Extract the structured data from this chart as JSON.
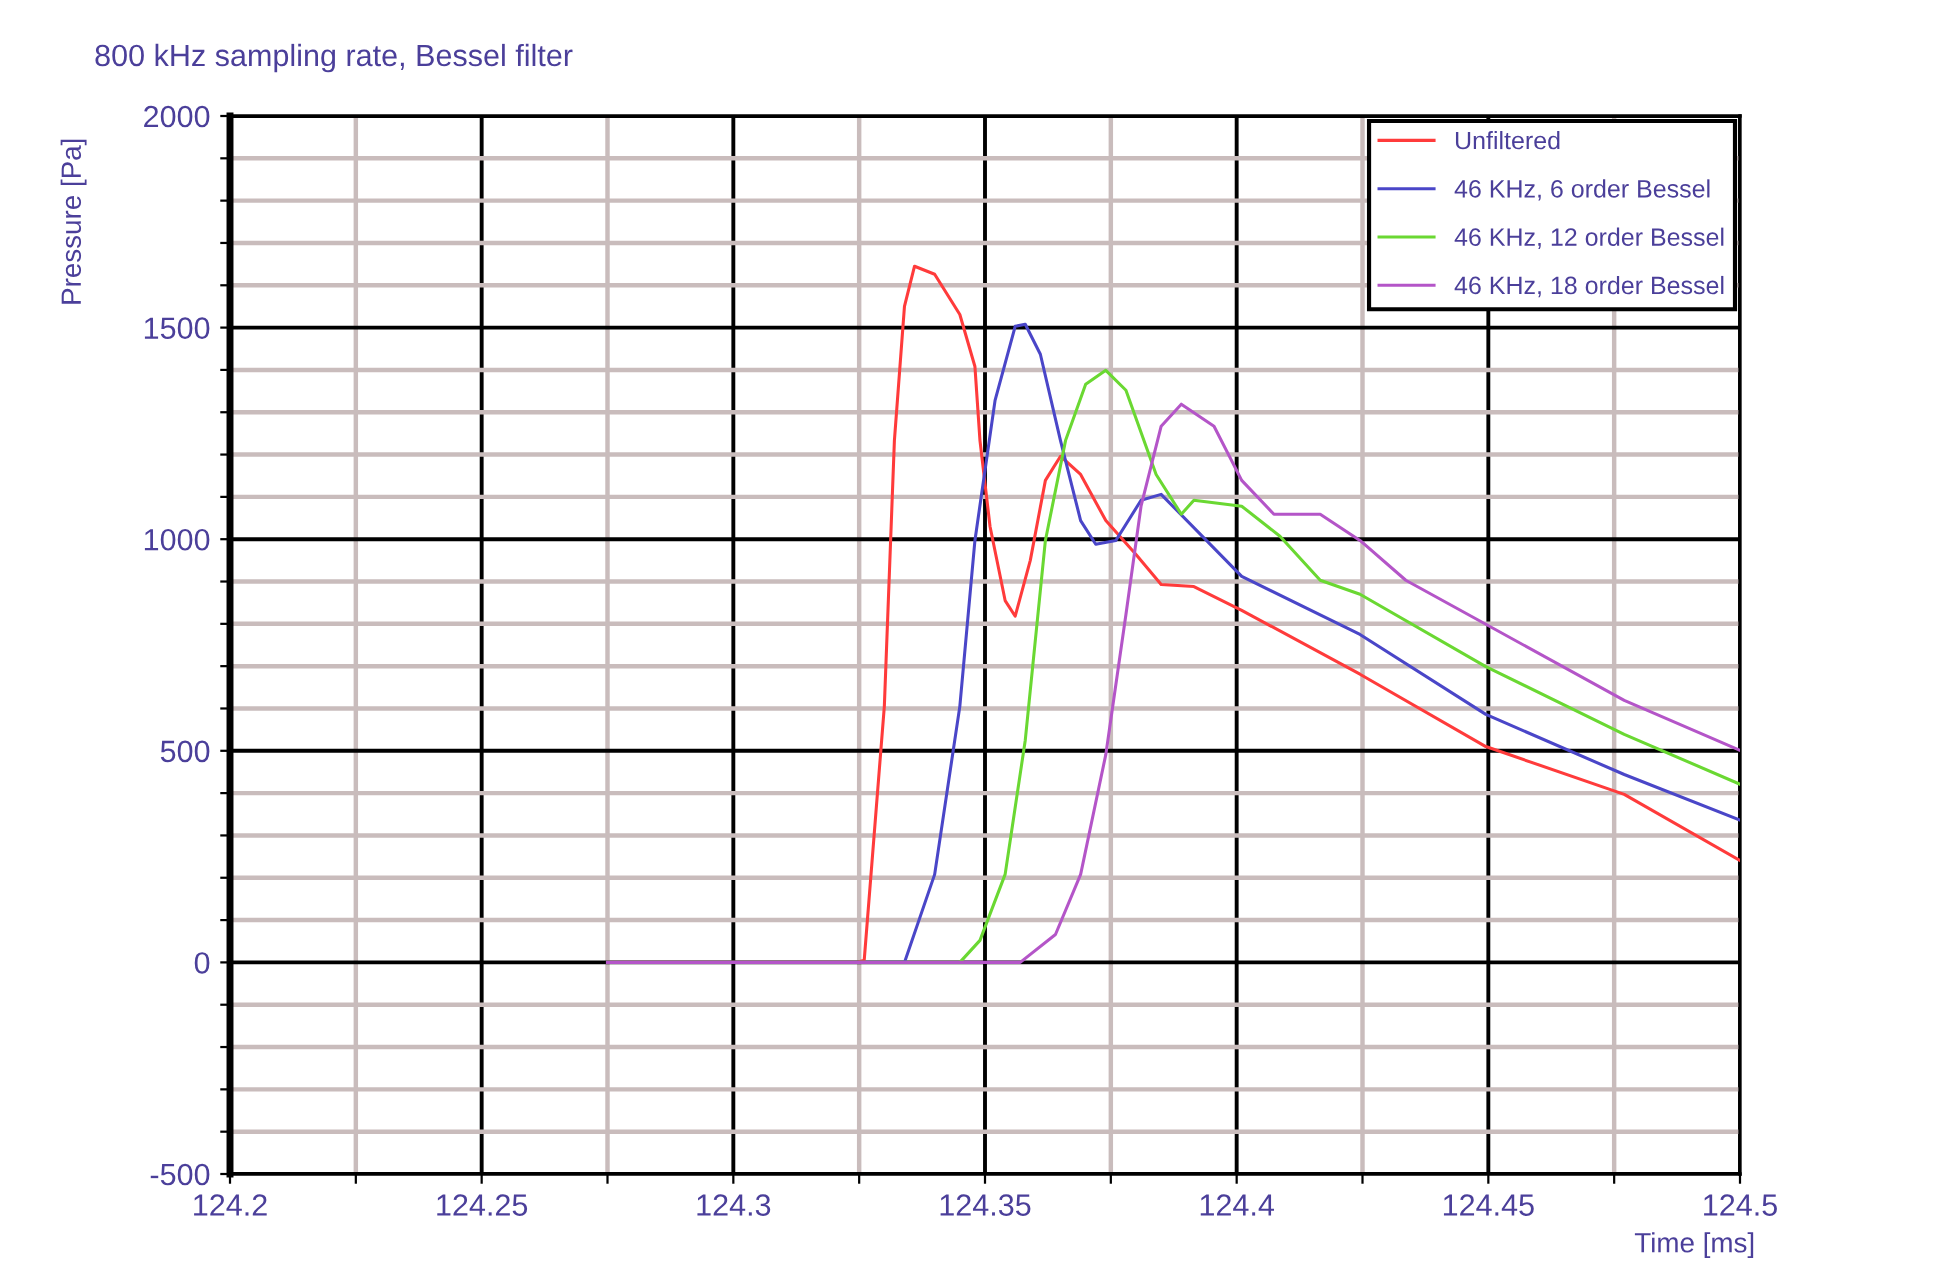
{
  "chart_data": {
    "type": "line",
    "title": "800 kHz sampling rate, Bessel filter",
    "xlabel": "Time [ms]",
    "ylabel": "Pressure [Pa]",
    "xlim": [
      124.2,
      124.5
    ],
    "ylim": [
      -500,
      2000
    ],
    "xticks": [
      124.2,
      {
        "value": 124.225,
        "label": null
      },
      124.25,
      {
        "value": 124.275,
        "label": null
      },
      124.3,
      {
        "value": 124.325,
        "label": null
      },
      124.35,
      {
        "value": 124.375,
        "label": null
      },
      124.4,
      {
        "value": 124.425,
        "label": null
      },
      124.45,
      {
        "value": 124.475,
        "label": null
      },
      124.5
    ],
    "yticks": [
      -500,
      {
        "value": -400,
        "label": null
      },
      {
        "value": -300,
        "label": null
      },
      {
        "value": -200,
        "label": null
      },
      {
        "value": -100,
        "label": null
      },
      0,
      {
        "value": 100,
        "label": null
      },
      {
        "value": 200,
        "label": null
      },
      {
        "value": 300,
        "label": null
      },
      {
        "value": 400,
        "label": null
      },
      500,
      {
        "value": 600,
        "label": null
      },
      {
        "value": 700,
        "label": null
      },
      {
        "value": 800,
        "label": null
      },
      {
        "value": 900,
        "label": null
      },
      1000,
      {
        "value": 1100,
        "label": null
      },
      {
        "value": 1200,
        "label": null
      },
      {
        "value": 1300,
        "label": null
      },
      {
        "value": 1400,
        "label": null
      },
      1500,
      {
        "value": 1600,
        "label": null
      },
      {
        "value": 1700,
        "label": null
      },
      {
        "value": 1800,
        "label": null
      },
      {
        "value": 1900,
        "label": null
      },
      2000
    ],
    "grid": true,
    "legend": "top right",
    "marker": "none",
    "line_style": "solid",
    "series": [
      {
        "name": "Unfiltered",
        "color": "#ff3b3b",
        "x": [
          124.275,
          124.3245,
          124.326,
          124.33,
          124.332,
          124.334,
          124.336,
          124.34,
          124.345,
          124.348,
          124.349,
          124.351,
          124.354,
          124.356,
          124.359,
          124.362,
          124.365,
          124.369,
          124.374,
          124.38,
          124.385,
          124.3915,
          124.401,
          124.4245,
          124.4495,
          124.477,
          124.5
        ],
        "values": [
          0,
          0,
          5,
          605,
          1233,
          1550,
          1645,
          1626,
          1531,
          1408,
          1233,
          1030,
          855,
          818,
          950,
          1139,
          1196,
          1153,
          1044,
          964,
          893,
          888,
          832,
          681,
          510,
          397,
          241
        ]
      },
      {
        "name": "46 KHz, 6 order Bessel",
        "color": "#4a46c8",
        "x": [
          124.275,
          124.334,
          124.34,
          124.345,
          124.348,
          124.352,
          124.356,
          124.358,
          124.361,
          124.365,
          124.369,
          124.372,
          124.376,
          124.381,
          124.385,
          124.401,
          124.4245,
          124.4495,
          124.477,
          124.5
        ],
        "values": [
          0,
          0,
          208,
          605,
          997,
          1328,
          1503,
          1508,
          1437,
          1233,
          1044,
          988,
          997,
          1092,
          1106,
          912,
          775,
          586,
          444,
          336
        ]
      },
      {
        "name": "46 KHz, 12 order Bessel",
        "color": "#6ad832",
        "x": [
          124.275,
          124.345,
          124.349,
          124.354,
          124.358,
          124.362,
          124.366,
          124.37,
          124.374,
          124.378,
          124.384,
          124.389,
          124.3915,
          124.401,
          124.4086,
          124.4166,
          124.4245,
          124.4495,
          124.477,
          124.5
        ],
        "values": [
          0,
          0,
          52,
          208,
          525,
          997,
          1233,
          1366,
          1399,
          1352,
          1153,
          1059,
          1092,
          1078,
          1007,
          903,
          870,
          699,
          539,
          421
        ]
      },
      {
        "name": "46 KHz, 18 order Bessel",
        "color": "#b455c8",
        "x": [
          124.275,
          124.357,
          124.364,
          124.369,
          124.374,
          124.378,
          124.381,
          124.385,
          124.389,
          124.3955,
          124.401,
          124.4074,
          124.4166,
          124.4245,
          124.4336,
          124.4495,
          124.477,
          124.5
        ],
        "values": [
          0,
          0,
          66,
          208,
          491,
          822,
          1078,
          1267,
          1319,
          1267,
          1139,
          1059,
          1059,
          997,
          903,
          799,
          619,
          501
        ]
      }
    ]
  }
}
